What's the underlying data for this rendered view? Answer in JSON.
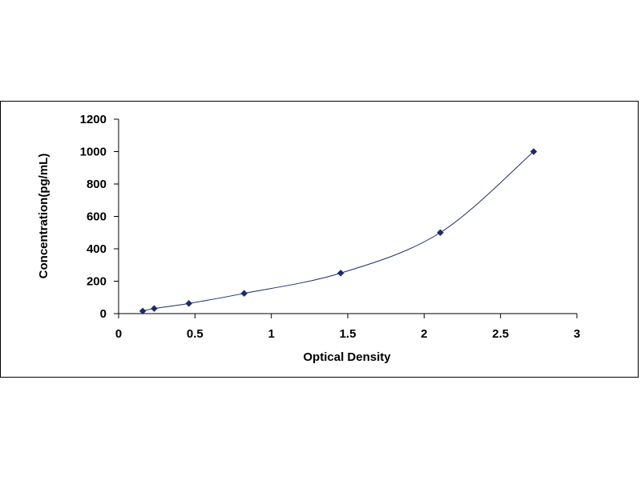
{
  "chart_data": {
    "type": "scatter",
    "title": "",
    "xlabel": "Optical Density",
    "ylabel": "Concentration(pg/mL)",
    "xlim": [
      0,
      3
    ],
    "ylim": [
      0,
      1200
    ],
    "xticks": [
      "0",
      "0.5",
      "1",
      "1.5",
      "2",
      "2.5",
      "3"
    ],
    "yticks": [
      "0",
      "200",
      "400",
      "600",
      "800",
      "1000",
      "1200"
    ],
    "grid": false,
    "legend": "none",
    "series": [
      {
        "x": [
          0.158,
          0.233,
          0.46,
          0.822,
          1.454,
          2.106,
          2.717
        ],
        "y": [
          15.6,
          31.2,
          62.5,
          125,
          250,
          500,
          1000
        ]
      }
    ],
    "trendline": true,
    "colors": {
      "marker": "#1f2a6b",
      "line": "#1f2a6b",
      "axis": "#000000"
    }
  }
}
